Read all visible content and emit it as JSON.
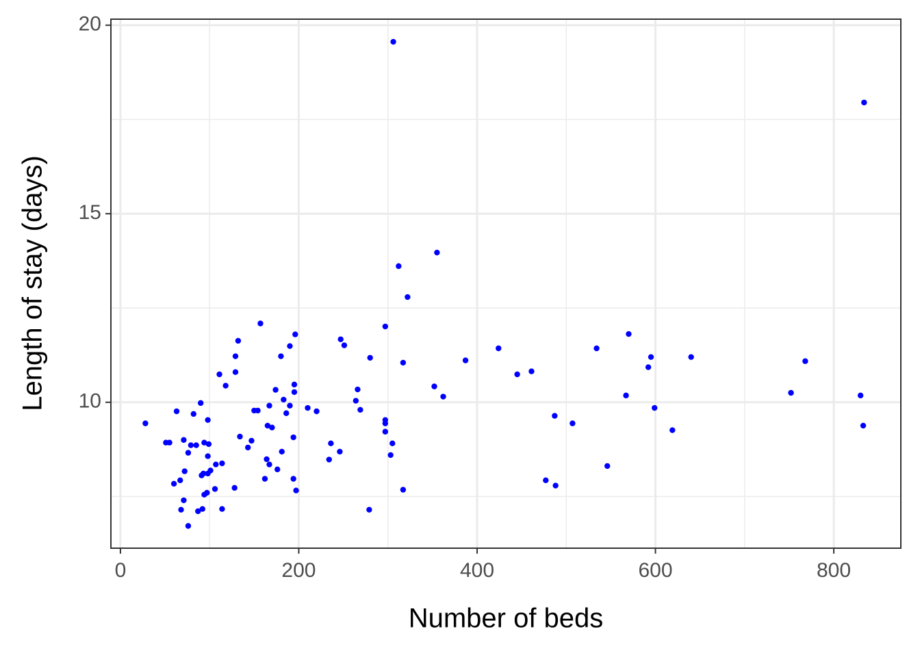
{
  "chart_data": {
    "type": "scatter",
    "x_label": "Number of beds",
    "y_label": "Length of stay (days)",
    "color": "#0000ff",
    "grid": true,
    "xlim": [
      -10.7,
      875.2
    ],
    "ylim": [
      6.13,
      20.16
    ],
    "xticks": [
      0,
      200,
      400,
      600,
      800
    ],
    "yticks": [
      10,
      15,
      20
    ],
    "x": [
      28,
      51,
      55,
      60,
      63,
      67,
      68,
      71,
      71,
      72,
      76,
      76,
      79,
      82,
      85,
      87,
      90,
      91,
      92,
      93,
      94,
      94,
      97,
      98,
      98,
      98,
      99,
      101,
      106,
      107,
      111,
      114,
      114,
      118,
      128,
      129,
      129,
      132,
      134,
      143,
      147,
      150,
      154,
      157,
      162,
      164,
      165,
      167,
      167,
      170,
      174,
      176,
      180,
      181,
      183,
      186,
      190,
      190,
      194,
      194,
      195,
      195,
      196,
      197,
      210,
      220,
      234,
      236,
      246,
      247,
      251,
      264,
      266,
      269,
      279,
      280,
      297,
      297,
      297,
      297,
      303,
      305,
      306,
      312,
      317,
      317,
      322,
      352,
      355,
      362,
      387,
      424,
      445,
      461,
      477,
      487,
      488,
      507,
      534,
      546,
      567,
      570,
      592,
      595,
      599,
      619,
      640,
      752,
      768,
      830,
      833,
      834
    ],
    "values": [
      9.44,
      8.93,
      8.93,
      7.84,
      9.76,
      7.93,
      7.15,
      9.0,
      7.4,
      8.17,
      8.66,
      6.72,
      8.86,
      9.69,
      8.86,
      7.11,
      9.98,
      8.06,
      7.17,
      8.11,
      8.93,
      7.55,
      7.6,
      8.11,
      9.53,
      8.57,
      8.89,
      8.19,
      7.7,
      8.35,
      10.74,
      8.38,
      7.17,
      10.44,
      7.73,
      10.8,
      11.22,
      11.63,
      9.09,
      8.8,
      8.98,
      9.78,
      9.78,
      12.09,
      7.97,
      8.49,
      9.38,
      8.35,
      9.91,
      9.33,
      10.33,
      8.22,
      11.22,
      8.69,
      10.07,
      9.71,
      11.49,
      9.91,
      9.07,
      7.97,
      10.27,
      10.47,
      11.8,
      7.66,
      9.85,
      9.76,
      8.48,
      8.91,
      8.69,
      11.67,
      11.51,
      10.04,
      10.34,
      9.8,
      7.15,
      11.18,
      9.53,
      9.44,
      9.22,
      12.01,
      8.6,
      8.91,
      19.56,
      13.61,
      7.68,
      11.05,
      12.79,
      10.42,
      13.97,
      10.15,
      11.11,
      11.43,
      10.74,
      10.82,
      7.93,
      9.64,
      7.79,
      9.44,
      11.43,
      8.31,
      10.18,
      11.81,
      10.93,
      11.2,
      9.85,
      9.26,
      11.2,
      10.25,
      11.09,
      10.18,
      9.38,
      17.95
    ]
  }
}
